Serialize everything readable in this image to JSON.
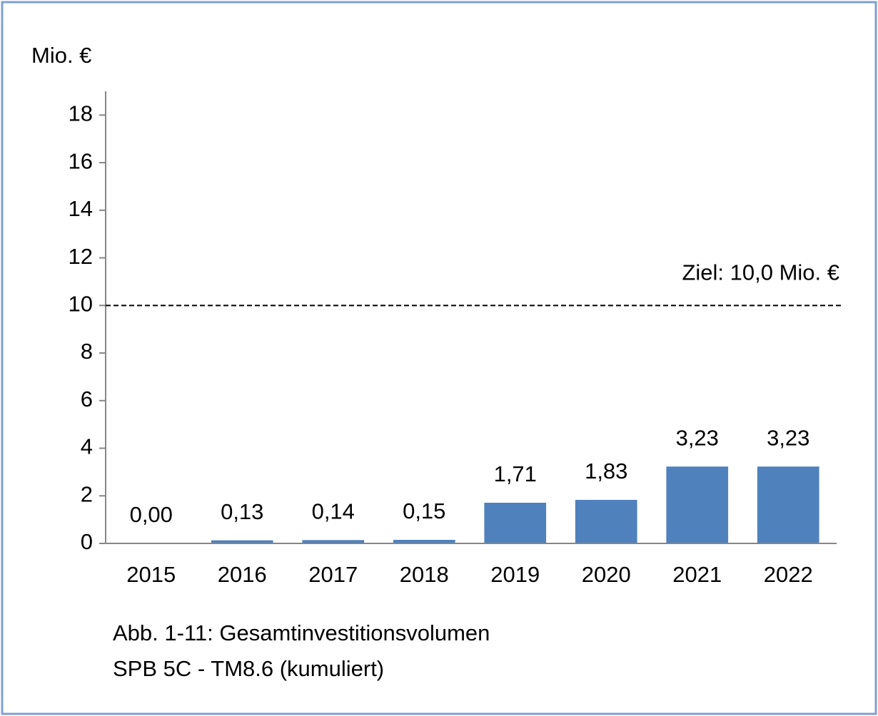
{
  "chart_data": {
    "type": "bar",
    "y_label": "Mio. €",
    "categories": [
      "2015",
      "2016",
      "2017",
      "2018",
      "2019",
      "2020",
      "2021",
      "2022"
    ],
    "values": [
      0,
      0.13,
      0.14,
      0.15,
      1.71,
      1.83,
      3.23,
      3.23
    ],
    "value_labels": [
      "0,00",
      "0,13",
      "0,14",
      "0,15",
      "1,71",
      "1,83",
      "3,23",
      "3,23"
    ],
    "color": "#4f81bd",
    "ylim": [
      0,
      19
    ],
    "yticks": [
      0,
      2,
      4,
      6,
      8,
      10,
      12,
      14,
      16,
      18
    ],
    "target": {
      "value": 10,
      "label": "Ziel: 10,0 Mio. €"
    },
    "caption": [
      "Abb. 1-11: Gesamtinvestitionsvolumen",
      "SPB 5C - TM8.6 (kumuliert)"
    ]
  }
}
